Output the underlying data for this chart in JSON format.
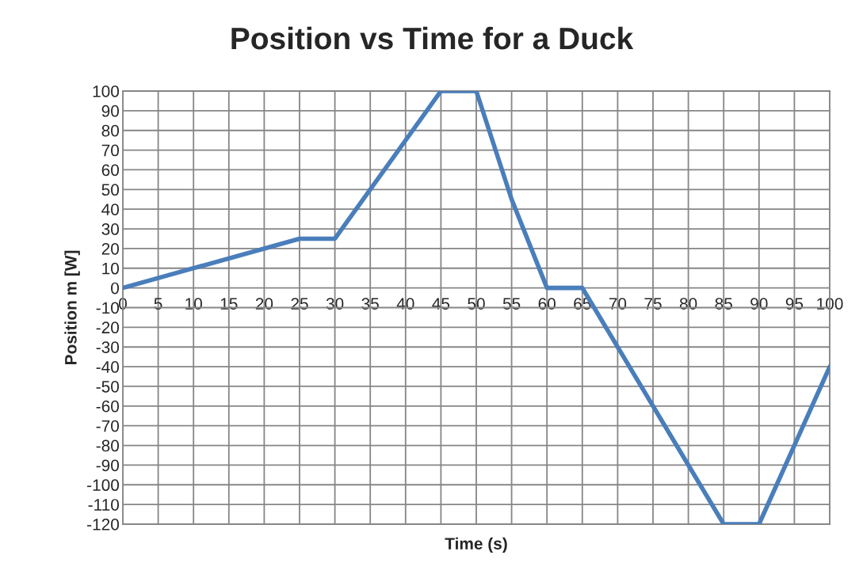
{
  "chart_data": {
    "type": "line",
    "title": "Position vs Time for a Duck",
    "xlabel": "Time (s)",
    "ylabel": "Position m [W]",
    "x": [
      0,
      25,
      30,
      45,
      50,
      55,
      60,
      65,
      85,
      90,
      100
    ],
    "series": [
      {
        "color": "#4a7ebb",
        "values": [
          0,
          25,
          25,
          100,
          100,
          45,
          0,
          0,
          -120,
          -120,
          -40
        ]
      }
    ],
    "xlim": [
      0,
      100
    ],
    "xticks": [
      0,
      5,
      10,
      15,
      20,
      25,
      30,
      35,
      40,
      45,
      50,
      55,
      60,
      65,
      70,
      75,
      80,
      85,
      90,
      95,
      100
    ],
    "ylim": [
      -120,
      100
    ],
    "yticks": [
      -120,
      -110,
      -100,
      -90,
      -80,
      -70,
      -60,
      -50,
      -40,
      -30,
      -20,
      -10,
      0,
      10,
      20,
      30,
      40,
      50,
      60,
      70,
      80,
      90,
      100
    ],
    "grid": true,
    "marker": "none",
    "line_style": "solid"
  }
}
